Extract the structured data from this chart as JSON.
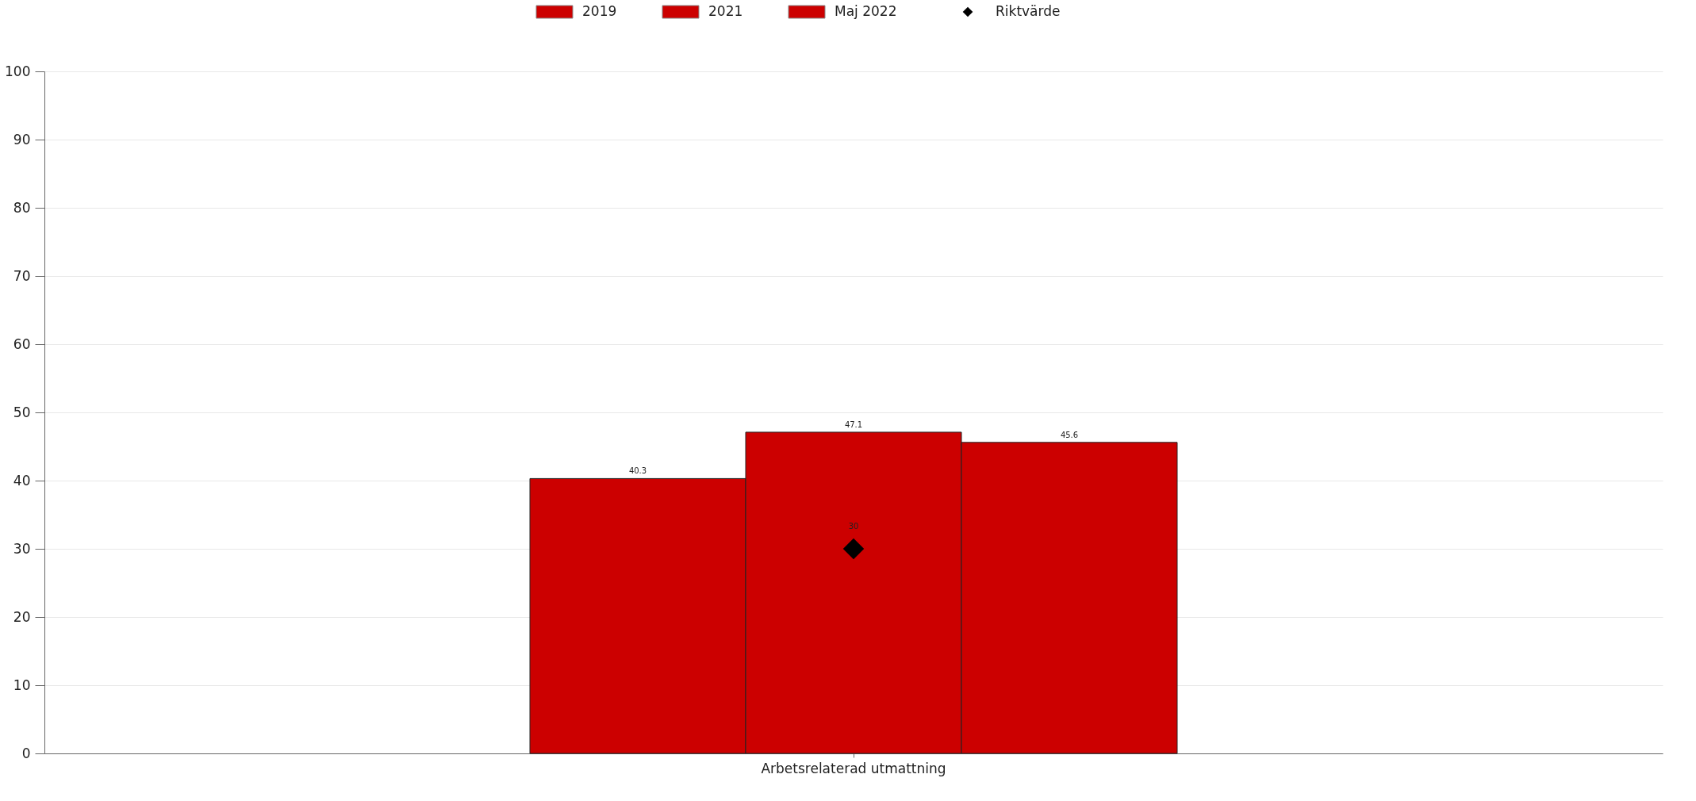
{
  "chart_data": {
    "type": "bar",
    "categories": [
      "Arbetsrelaterad utmattning"
    ],
    "series": [
      {
        "name": "2019",
        "color": "#cc0000",
        "values": [
          40.3
        ]
      },
      {
        "name": "2021",
        "color": "#cc0000",
        "values": [
          47.1
        ]
      },
      {
        "name": "Maj 2022",
        "color": "#cc0000",
        "values": [
          45.6
        ]
      },
      {
        "name": "Riktvärde",
        "type": "scatter",
        "marker": "diamond",
        "color": "#000000",
        "values": [
          30
        ]
      }
    ],
    "ylim": [
      0,
      100
    ],
    "yticks": [
      0,
      10,
      20,
      30,
      40,
      50,
      60,
      70,
      80,
      90,
      100
    ],
    "grid": "y",
    "legend": "top",
    "data_labels": true
  }
}
